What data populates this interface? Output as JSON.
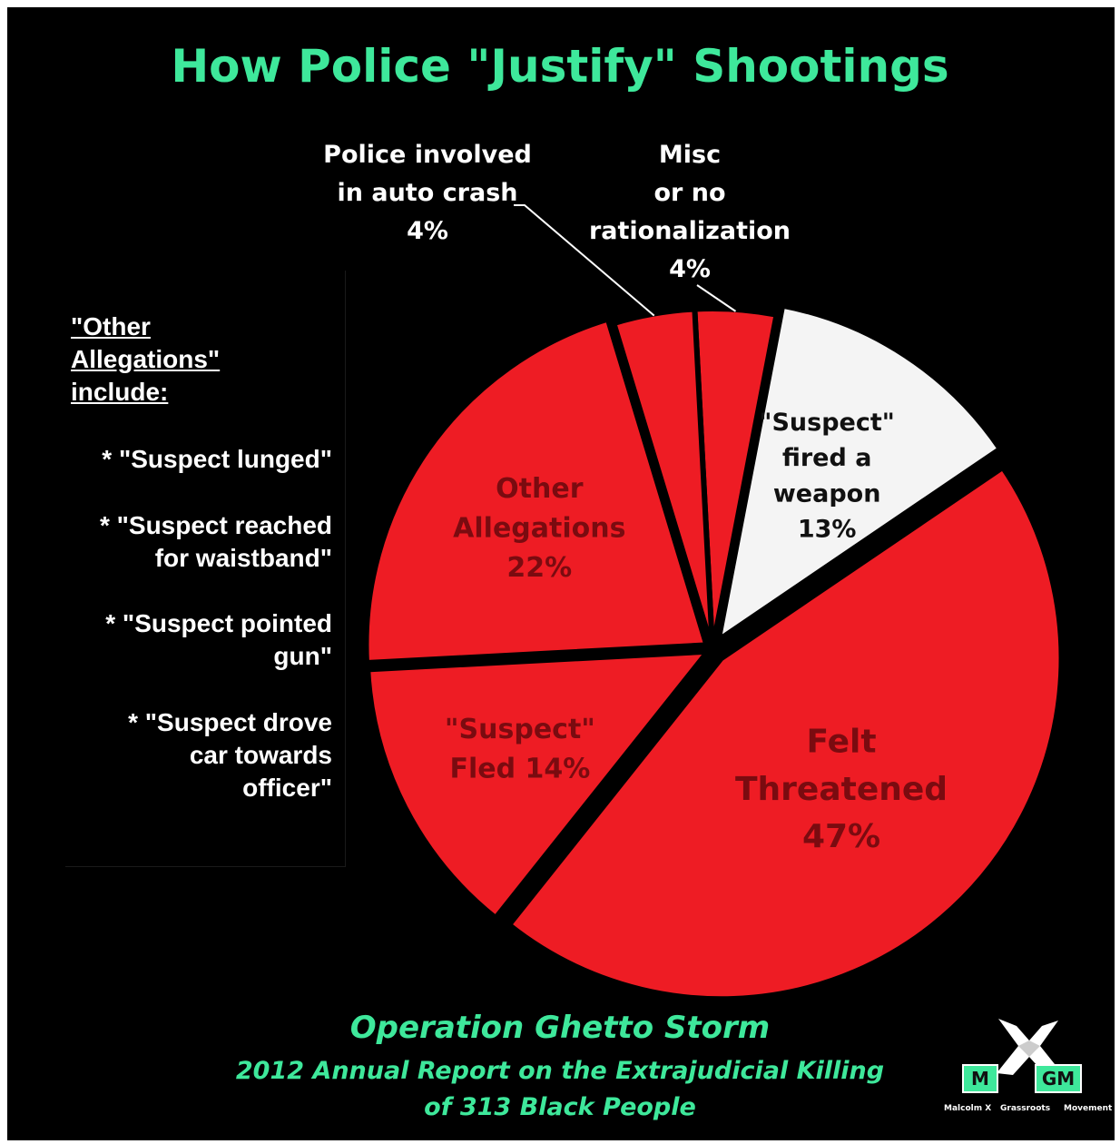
{
  "header": {
    "title": "How Police \"Justify\" Shootings"
  },
  "chart_data": {
    "type": "pie",
    "title": "How Police \"Justify\" Shootings",
    "slices": [
      {
        "label": "Misc or no rationalization",
        "display": [
          "Misc",
          "or no",
          "rationalization",
          "4%"
        ],
        "value": 4,
        "color": "#ee1c24"
      },
      {
        "label": "\"Suspect\" fired a weapon",
        "display": [
          "\"Suspect\"",
          "fired a",
          "weapon",
          "13%"
        ],
        "value": 13,
        "color": "#f4f4f4"
      },
      {
        "label": "Felt Threatened",
        "display": [
          "Felt",
          "Threatened",
          "47%"
        ],
        "value": 47,
        "color": "#ee1c24"
      },
      {
        "label": "\"Suspect\" Fled",
        "display": [
          "\"Suspect\"",
          "Fled 14%"
        ],
        "value": 14,
        "color": "#ee1c24"
      },
      {
        "label": "Other Allegations",
        "display": [
          "Other",
          "Allegations",
          "22%"
        ],
        "value": 22,
        "color": "#ee1c24"
      },
      {
        "label": "Police involved in auto crash",
        "display": [
          "Police involved",
          "in auto crash",
          "4%"
        ],
        "value": 4,
        "color": "#ee1c24"
      }
    ]
  },
  "sidebar": {
    "heading": "\"Other\nAllegations\"\ninclude:",
    "items": [
      "* \"Suspect lunged\"",
      "* \"Suspect reached\nfor waistband\"",
      "* \"Suspect pointed\ngun\"",
      "* \"Suspect drove\ncar towards\nofficer\""
    ]
  },
  "footer": {
    "line1": "Operation Ghetto Storm",
    "line2": "2012 Annual Report on the Extrajudicial Killing",
    "line3": "of 313 Black People"
  },
  "logo": {
    "left_box": "M",
    "right_box": "GM",
    "caption_left": "Malcolm X",
    "caption_mid": "Grassroots",
    "caption_right": "Movement"
  },
  "colors": {
    "accent": "#3ee89b",
    "slice_red": "#ee1c24",
    "slice_white": "#f4f4f4",
    "background": "#000000"
  }
}
